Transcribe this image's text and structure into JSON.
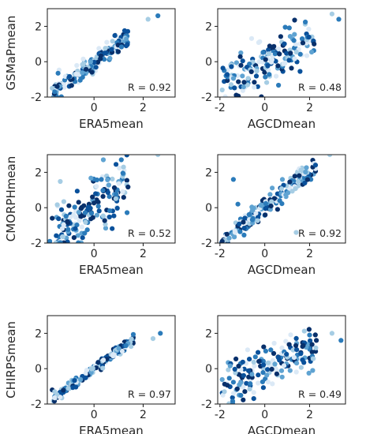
{
  "colormap": [
    "#dbe9f6",
    "#a6cde4",
    "#5fa3d2",
    "#2b7bba",
    "#0a519b",
    "#08306b"
  ],
  "chart_data": [
    {
      "type": "scatter",
      "row": 0,
      "col": 0,
      "xlabel": "ERA5mean",
      "ylabel": "GSMaPmean",
      "annotation": "R = 0.92",
      "xlim": [
        -1.9,
        3.3
      ],
      "ylim": [
        -2,
        3.0
      ],
      "xticks": [
        0,
        2
      ],
      "yticks": [
        -2,
        0,
        2
      ],
      "r": 0.92,
      "slope": 1.03,
      "xrange": [
        -1.7,
        1.4
      ],
      "noise": 0.28,
      "n": 170,
      "seed": 11,
      "points": [
        [
          -1.7,
          -1.5
        ],
        [
          -1.6,
          -1.7
        ],
        [
          -1.5,
          -1.4
        ],
        [
          2.2,
          2.4
        ],
        [
          2.6,
          2.6
        ]
      ]
    },
    {
      "type": "scatter",
      "row": 0,
      "col": 1,
      "xlabel": "AGCDmean",
      "ylabel": "",
      "annotation": "R = 0.48",
      "xlim": [
        -2.1,
        3.6
      ],
      "ylim": [
        -2,
        3.0
      ],
      "xticks": [
        -2,
        0,
        2
      ],
      "yticks": [
        -2,
        0,
        2
      ],
      "r": 0.48,
      "slope": 0.5,
      "xrange": [
        -1.9,
        2.2
      ],
      "noise": 0.65,
      "n": 170,
      "seed": 23,
      "points": [
        [
          3.0,
          2.7
        ],
        [
          3.3,
          2.4
        ],
        [
          2.2,
          1.0
        ],
        [
          -1.9,
          -1.6
        ],
        [
          1.3,
          1.2
        ]
      ]
    },
    {
      "type": "scatter",
      "row": 1,
      "col": 0,
      "xlabel": "ERA5mean",
      "ylabel": "CMORPHmean",
      "annotation": "R = 0.52",
      "xlim": [
        -1.9,
        3.3
      ],
      "ylim": [
        -2,
        3.0
      ],
      "xticks": [
        0,
        2
      ],
      "yticks": [
        -2,
        0,
        2
      ],
      "r": 0.52,
      "slope": 0.9,
      "xrange": [
        -1.6,
        1.4
      ],
      "noise": 0.9,
      "n": 170,
      "seed": 37,
      "points": [
        [
          2.6,
          3.0
        ],
        [
          -1.8,
          -1.9
        ],
        [
          -1.7,
          -0.6
        ],
        [
          1.2,
          2.3
        ],
        [
          0.3,
          1.6
        ]
      ]
    },
    {
      "type": "scatter",
      "row": 1,
      "col": 1,
      "xlabel": "AGCDmean",
      "ylabel": "",
      "annotation": "R = 0.92",
      "xlim": [
        -2.1,
        3.6
      ],
      "ylim": [
        -2,
        3.0
      ],
      "xticks": [
        -2,
        0,
        2
      ],
      "yticks": [
        -2,
        0,
        2
      ],
      "r": 0.92,
      "slope": 1.03,
      "xrange": [
        -2.0,
        2.3
      ],
      "noise": 0.3,
      "n": 170,
      "seed": 41,
      "points": [
        [
          2.9,
          3.0
        ],
        [
          -1.4,
          1.6
        ],
        [
          -1.9,
          -1.9
        ],
        [
          1.4,
          -1.4
        ],
        [
          -1.2,
          0.2
        ]
      ]
    },
    {
      "type": "scatter",
      "row": 2,
      "col": 0,
      "xlabel": "ERA5mean",
      "ylabel": "CHIRPSmean",
      "annotation": "R = 0.97",
      "xlim": [
        -1.9,
        3.3
      ],
      "ylim": [
        -2,
        3.0
      ],
      "xticks": [
        0,
        2
      ],
      "yticks": [
        -2,
        0,
        2
      ],
      "r": 0.97,
      "slope": 1.05,
      "xrange": [
        -1.7,
        1.6
      ],
      "noise": 0.14,
      "n": 170,
      "seed": 53,
      "points": [
        [
          2.4,
          1.7
        ],
        [
          2.7,
          2.0
        ],
        [
          -1.7,
          -1.2
        ],
        [
          -1.6,
          -1.3
        ],
        [
          1.3,
          1.3
        ]
      ]
    },
    {
      "type": "scatter",
      "row": 2,
      "col": 1,
      "xlabel": "AGCDmean",
      "ylabel": "",
      "annotation": "R = 0.49",
      "xlim": [
        -2.1,
        3.6
      ],
      "ylim": [
        -2,
        3.0
      ],
      "xticks": [
        -2,
        0,
        2
      ],
      "yticks": [
        -2,
        0,
        2
      ],
      "r": 0.49,
      "slope": 0.55,
      "xrange": [
        -1.9,
        2.3
      ],
      "noise": 0.55,
      "n": 170,
      "seed": 67,
      "points": [
        [
          3.0,
          2.0
        ],
        [
          3.4,
          1.6
        ],
        [
          2.3,
          1.6
        ],
        [
          -1.8,
          -1.3
        ],
        [
          2.0,
          1.9
        ]
      ]
    }
  ]
}
